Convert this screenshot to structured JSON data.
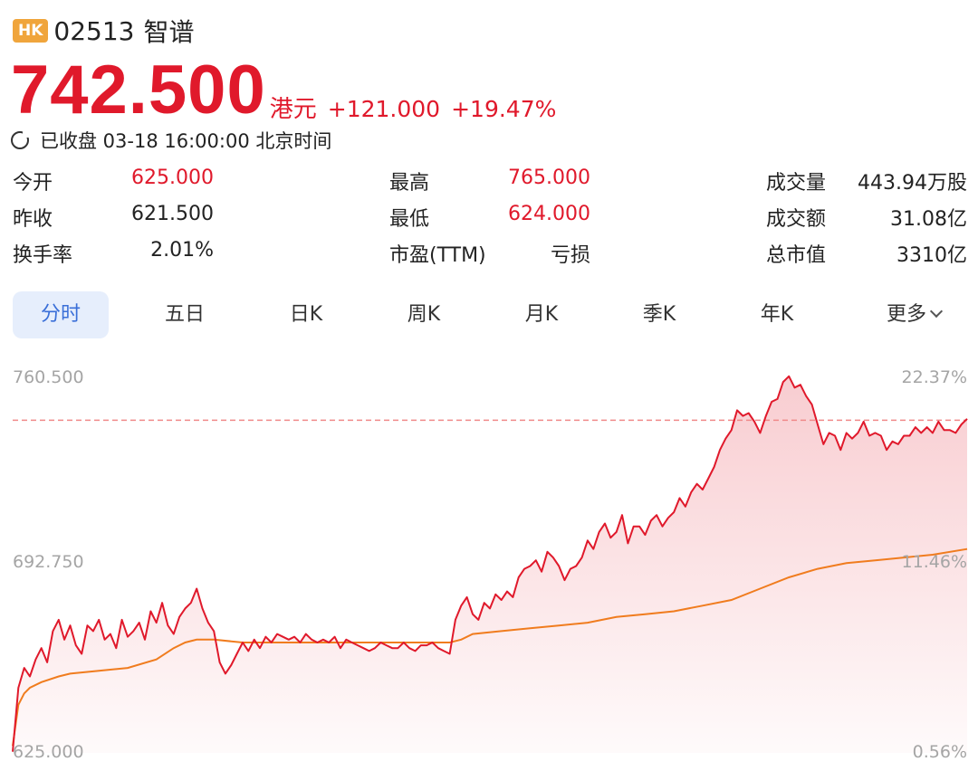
{
  "header": {
    "market_badge": "HK",
    "code": "02513",
    "name": "智谱"
  },
  "quote": {
    "price": "742.500",
    "currency": "港元",
    "change": "+121.000",
    "change_pct": "+19.47%"
  },
  "status": {
    "text": "已收盘 03-18 16:00:00 北京时间"
  },
  "stats": [
    [
      {
        "label": "今开",
        "value": "625.000",
        "color": "red"
      },
      {
        "label": "最高",
        "value": "765.000",
        "color": "red"
      },
      {
        "label": "成交量",
        "value": "443.94万股",
        "color": "dark"
      }
    ],
    [
      {
        "label": "昨收",
        "value": "621.500",
        "color": "dark"
      },
      {
        "label": "最低",
        "value": "624.000",
        "color": "red"
      },
      {
        "label": "成交额",
        "value": "31.08亿",
        "color": "dark"
      }
    ],
    [
      {
        "label": "换手率",
        "value": "2.01%",
        "color": "dark"
      },
      {
        "label": "市盈(TTM)",
        "value": "亏损",
        "color": "dark"
      },
      {
        "label": "总市值",
        "value": "3310亿",
        "color": "dark"
      }
    ]
  ],
  "tabs": [
    {
      "label": "分时",
      "active": true
    },
    {
      "label": "五日"
    },
    {
      "label": "日K"
    },
    {
      "label": "周K"
    },
    {
      "label": "月K"
    },
    {
      "label": "季K"
    },
    {
      "label": "年K"
    },
    {
      "label": "更多",
      "dropdown": true
    }
  ],
  "colors": {
    "up": "#e0192b",
    "avg_line": "#f07c1e",
    "tab_active_bg": "#e6eefc",
    "tab_active_text": "#3a6fd8",
    "axis_text": "#a5a5a5"
  },
  "chart_data": {
    "type": "line",
    "y_left_labels": [
      "760.500",
      "692.750",
      "625.000"
    ],
    "y_right_labels": [
      "22.37%",
      "11.46%",
      "0.56%"
    ],
    "ylim": [
      625.0,
      760.5
    ],
    "xlim": [
      0,
      332
    ],
    "reference_price": 742.5,
    "series": [
      {
        "points": [
          [
            0,
            625.4
          ],
          [
            2,
            648
          ],
          [
            4,
            655
          ],
          [
            6,
            652
          ],
          [
            8,
            658
          ],
          [
            10,
            662
          ],
          [
            12,
            657
          ],
          [
            14,
            668
          ],
          [
            16,
            672
          ],
          [
            18,
            665
          ],
          [
            20,
            670
          ],
          [
            22,
            663
          ],
          [
            24,
            660
          ],
          [
            26,
            670
          ],
          [
            28,
            668
          ],
          [
            30,
            672
          ],
          [
            32,
            665
          ],
          [
            34,
            667
          ],
          [
            36,
            662
          ],
          [
            38,
            672
          ],
          [
            40,
            666
          ],
          [
            42,
            668
          ],
          [
            44,
            671
          ],
          [
            46,
            665
          ],
          [
            48,
            675
          ],
          [
            50,
            671
          ],
          [
            52,
            678
          ],
          [
            54,
            670
          ],
          [
            56,
            667
          ],
          [
            58,
            673
          ],
          [
            60,
            676
          ],
          [
            62,
            678
          ],
          [
            64,
            683
          ],
          [
            66,
            676
          ],
          [
            68,
            671
          ],
          [
            70,
            668
          ],
          [
            72,
            657
          ],
          [
            74,
            653
          ],
          [
            76,
            656
          ],
          [
            78,
            660
          ],
          [
            80,
            664
          ],
          [
            82,
            661
          ],
          [
            84,
            665
          ],
          [
            86,
            662
          ],
          [
            88,
            666
          ],
          [
            90,
            664
          ],
          [
            92,
            667
          ],
          [
            94,
            666
          ],
          [
            96,
            665
          ],
          [
            98,
            666
          ],
          [
            100,
            664
          ],
          [
            102,
            667
          ],
          [
            104,
            665
          ],
          [
            106,
            664
          ],
          [
            108,
            665
          ],
          [
            110,
            664
          ],
          [
            112,
            666
          ],
          [
            114,
            662
          ],
          [
            116,
            665
          ],
          [
            118,
            664
          ],
          [
            120,
            663
          ],
          [
            122,
            662
          ],
          [
            124,
            661
          ],
          [
            126,
            662
          ],
          [
            128,
            664
          ],
          [
            130,
            663
          ],
          [
            132,
            662
          ],
          [
            134,
            662
          ],
          [
            136,
            664
          ],
          [
            138,
            662
          ],
          [
            140,
            661
          ],
          [
            142,
            663
          ],
          [
            144,
            663
          ],
          [
            146,
            664
          ],
          [
            148,
            662
          ],
          [
            150,
            661
          ],
          [
            152,
            660
          ],
          [
            154,
            672
          ],
          [
            156,
            677
          ],
          [
            158,
            680
          ],
          [
            160,
            674
          ],
          [
            162,
            672
          ],
          [
            164,
            678
          ],
          [
            166,
            676
          ],
          [
            168,
            681
          ],
          [
            170,
            679
          ],
          [
            172,
            682
          ],
          [
            174,
            680
          ],
          [
            176,
            687
          ],
          [
            178,
            690
          ],
          [
            180,
            691
          ],
          [
            182,
            693
          ],
          [
            184,
            689
          ],
          [
            186,
            696
          ],
          [
            188,
            694
          ],
          [
            190,
            691
          ],
          [
            192,
            686
          ],
          [
            194,
            690
          ],
          [
            196,
            691
          ],
          [
            198,
            694
          ],
          [
            200,
            700
          ],
          [
            202,
            697
          ],
          [
            204,
            703
          ],
          [
            206,
            706
          ],
          [
            208,
            701
          ],
          [
            210,
            703
          ],
          [
            212,
            709
          ],
          [
            214,
            699
          ],
          [
            216,
            705
          ],
          [
            218,
            705
          ],
          [
            220,
            702
          ],
          [
            222,
            707
          ],
          [
            224,
            709
          ],
          [
            226,
            705
          ],
          [
            228,
            708
          ],
          [
            230,
            710
          ],
          [
            232,
            715
          ],
          [
            234,
            712
          ],
          [
            236,
            717
          ],
          [
            238,
            720
          ],
          [
            240,
            718
          ],
          [
            242,
            722
          ],
          [
            244,
            726
          ],
          [
            246,
            732
          ],
          [
            248,
            736
          ],
          [
            250,
            739
          ],
          [
            252,
            746
          ],
          [
            254,
            744
          ],
          [
            256,
            745
          ],
          [
            258,
            742
          ],
          [
            260,
            738
          ],
          [
            262,
            744
          ],
          [
            264,
            749
          ],
          [
            266,
            750
          ],
          [
            268,
            756
          ],
          [
            270,
            758
          ],
          [
            272,
            754
          ],
          [
            274,
            755
          ],
          [
            276,
            751
          ],
          [
            278,
            748
          ],
          [
            280,
            741
          ],
          [
            282,
            734
          ],
          [
            284,
            738
          ],
          [
            286,
            737
          ],
          [
            288,
            732
          ],
          [
            290,
            738
          ],
          [
            292,
            736
          ],
          [
            294,
            738
          ],
          [
            296,
            742
          ],
          [
            298,
            737
          ],
          [
            300,
            738
          ],
          [
            302,
            737
          ],
          [
            304,
            732
          ],
          [
            306,
            735
          ],
          [
            308,
            734
          ],
          [
            310,
            737
          ],
          [
            312,
            737
          ],
          [
            314,
            740
          ],
          [
            316,
            738
          ],
          [
            318,
            740
          ],
          [
            320,
            738
          ],
          [
            322,
            742
          ],
          [
            324,
            739
          ],
          [
            326,
            739
          ],
          [
            328,
            738
          ],
          [
            330,
            741
          ],
          [
            332,
            743
          ]
        ]
      },
      {
        "points": [
          [
            0,
            627.5
          ],
          [
            2,
            642
          ],
          [
            4,
            646
          ],
          [
            6,
            648
          ],
          [
            10,
            650
          ],
          [
            16,
            652
          ],
          [
            20,
            653
          ],
          [
            30,
            654
          ],
          [
            40,
            655
          ],
          [
            50,
            658
          ],
          [
            56,
            662
          ],
          [
            60,
            664
          ],
          [
            64,
            665
          ],
          [
            70,
            665
          ],
          [
            80,
            664
          ],
          [
            100,
            664
          ],
          [
            120,
            664
          ],
          [
            140,
            664
          ],
          [
            152,
            664
          ],
          [
            156,
            665
          ],
          [
            160,
            667
          ],
          [
            170,
            668
          ],
          [
            180,
            669
          ],
          [
            190,
            670
          ],
          [
            200,
            671
          ],
          [
            210,
            673
          ],
          [
            220,
            674
          ],
          [
            230,
            675
          ],
          [
            240,
            677
          ],
          [
            250,
            679
          ],
          [
            260,
            683
          ],
          [
            270,
            687
          ],
          [
            280,
            690
          ],
          [
            290,
            692
          ],
          [
            300,
            693
          ],
          [
            310,
            694
          ],
          [
            320,
            695
          ],
          [
            332,
            697
          ]
        ]
      }
    ]
  }
}
